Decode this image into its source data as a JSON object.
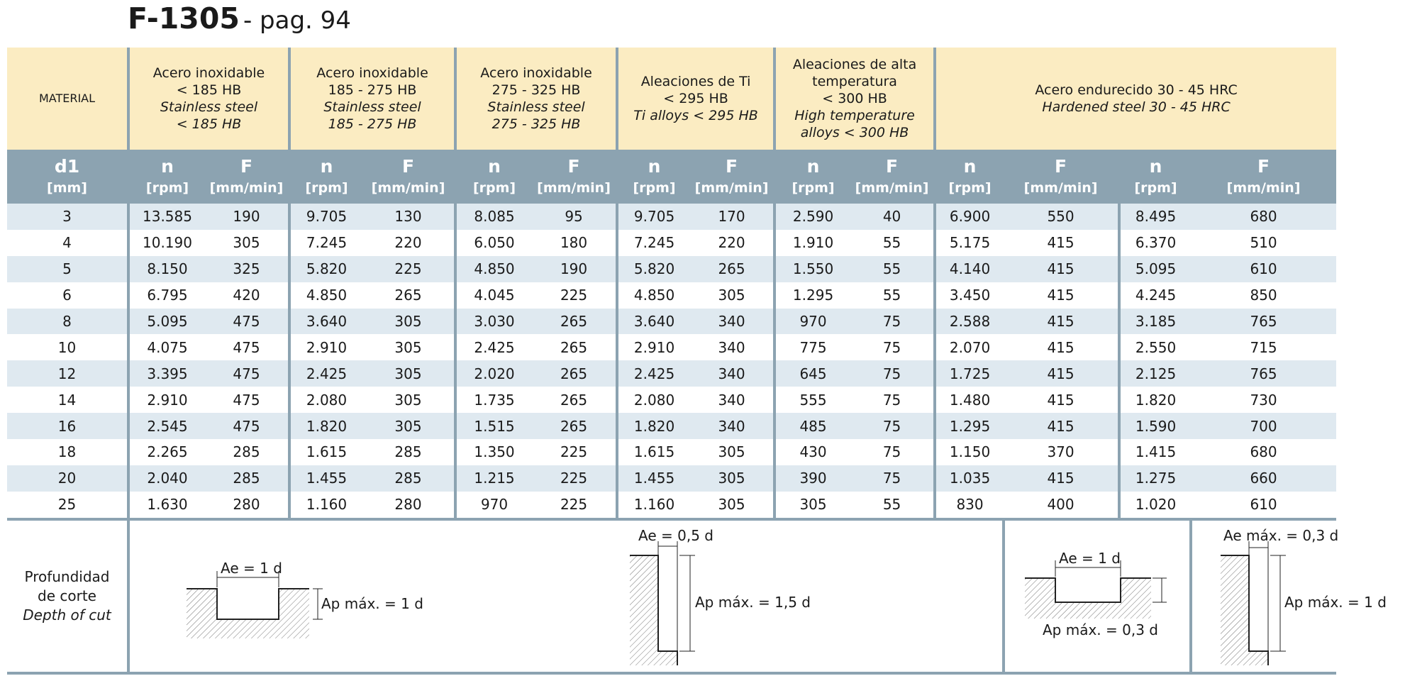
{
  "title": {
    "code": "F-1305",
    "subtitle": "- pag. 94"
  },
  "header": {
    "material_label": "MATERIAL",
    "groups": [
      {
        "lines": [
          "Acero inoxidable",
          "< 185 HB"
        ],
        "italic": [
          "Stainless steel",
          "< 185 HB"
        ]
      },
      {
        "lines": [
          "Acero inoxidable",
          "185 - 275 HB"
        ],
        "italic": [
          "Stainless steel",
          "185 - 275 HB"
        ]
      },
      {
        "lines": [
          "Acero inoxidable",
          "275 - 325 HB"
        ],
        "italic": [
          "Stainless steel",
          "275 - 325 HB"
        ]
      },
      {
        "lines": [
          "Aleaciones de Ti",
          "< 295 HB"
        ],
        "italic": [
          "Ti alloys < 295 HB"
        ]
      },
      {
        "lines": [
          "Aleaciones de alta",
          "temperatura",
          "< 300 HB"
        ],
        "italic": [
          "High temperature",
          "alloys < 300 HB"
        ]
      },
      {
        "lines": [
          "Acero endurecido 30 - 45 HRC"
        ],
        "italic": [
          "Hardened steel 30 - 45 HRC"
        ]
      }
    ],
    "d1": "d1",
    "d1_unit": "[mm]",
    "n": "n",
    "n_unit": "[rpm]",
    "f": "F",
    "f_unit": "[mm/min]"
  },
  "rows": [
    [
      "3",
      "13.585",
      "190",
      "9.705",
      "130",
      "8.085",
      "95",
      "9.705",
      "170",
      "2.590",
      "40",
      "6.900",
      "550",
      "8.495",
      "680"
    ],
    [
      "4",
      "10.190",
      "305",
      "7.245",
      "220",
      "6.050",
      "180",
      "7.245",
      "220",
      "1.910",
      "55",
      "5.175",
      "415",
      "6.370",
      "510"
    ],
    [
      "5",
      "8.150",
      "325",
      "5.820",
      "225",
      "4.850",
      "190",
      "5.820",
      "265",
      "1.550",
      "55",
      "4.140",
      "415",
      "5.095",
      "610"
    ],
    [
      "6",
      "6.795",
      "420",
      "4.850",
      "265",
      "4.045",
      "225",
      "4.850",
      "305",
      "1.295",
      "55",
      "3.450",
      "415",
      "4.245",
      "850"
    ],
    [
      "8",
      "5.095",
      "475",
      "3.640",
      "305",
      "3.030",
      "265",
      "3.640",
      "340",
      "970",
      "75",
      "2.588",
      "415",
      "3.185",
      "765"
    ],
    [
      "10",
      "4.075",
      "475",
      "2.910",
      "305",
      "2.425",
      "265",
      "2.910",
      "340",
      "775",
      "75",
      "2.070",
      "415",
      "2.550",
      "715"
    ],
    [
      "12",
      "3.395",
      "475",
      "2.425",
      "305",
      "2.020",
      "265",
      "2.425",
      "340",
      "645",
      "75",
      "1.725",
      "415",
      "2.125",
      "765"
    ],
    [
      "14",
      "2.910",
      "475",
      "2.080",
      "305",
      "1.735",
      "265",
      "2.080",
      "340",
      "555",
      "75",
      "1.480",
      "415",
      "1.820",
      "730"
    ],
    [
      "16",
      "2.545",
      "475",
      "1.820",
      "305",
      "1.515",
      "265",
      "1.820",
      "340",
      "485",
      "75",
      "1.295",
      "415",
      "1.590",
      "700"
    ],
    [
      "18",
      "2.265",
      "285",
      "1.615",
      "285",
      "1.350",
      "225",
      "1.615",
      "305",
      "430",
      "75",
      "1.150",
      "370",
      "1.415",
      "680"
    ],
    [
      "20",
      "2.040",
      "285",
      "1.455",
      "285",
      "1.215",
      "225",
      "1.455",
      "305",
      "390",
      "75",
      "1.035",
      "415",
      "1.275",
      "660"
    ],
    [
      "25",
      "1.630",
      "280",
      "1.160",
      "280",
      "970",
      "225",
      "1.160",
      "305",
      "305",
      "55",
      "830",
      "400",
      "1.020",
      "610"
    ]
  ],
  "depth": {
    "label_1": "Profundidad",
    "label_2": "de corte",
    "label_en": "Depth of cut",
    "d1_ae": "Ae = 1 d",
    "d1_ap": "Ap máx. = 1 d",
    "d2_ae": "Ae = 0,5 d",
    "d2_ap": "Ap máx. = 1,5 d",
    "d3_ae": "Ae = 1 d",
    "d3_ap": "Ap máx. = 0,3 d",
    "d4_ae": "Ae máx. = 0,3 d",
    "d4_ap": "Ap máx. = 1 d"
  }
}
